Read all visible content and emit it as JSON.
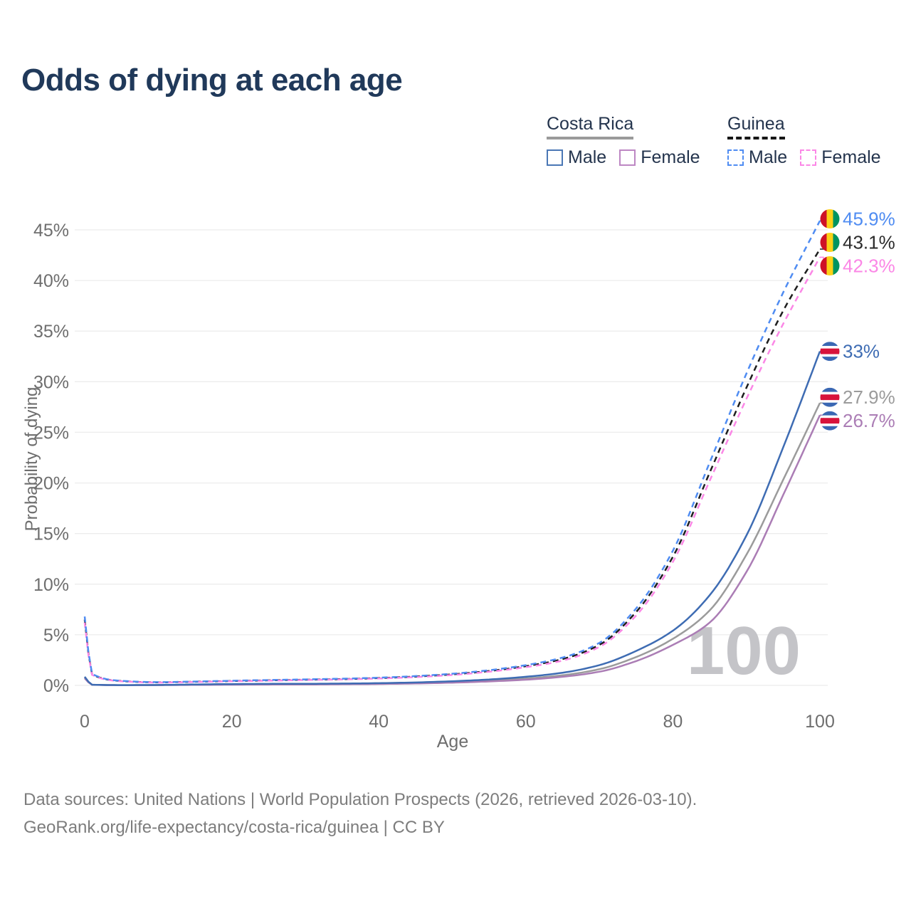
{
  "title": "Odds of dying at each age",
  "watermark": "100",
  "legend": {
    "costa_rica": {
      "label": "Costa Rica",
      "male": "Male",
      "female": "Female",
      "male_color": "#4a77b5",
      "female_color": "#bd87c3",
      "underline_color": "#9a9a9a",
      "style": "solid"
    },
    "guinea": {
      "label": "Guinea",
      "male": "Male",
      "female": "Female",
      "male_color": "#4f8cf2",
      "female_color": "#fb87e6",
      "underline_color": "#161616",
      "style": "dashed"
    }
  },
  "footer": {
    "line1": "Data sources: United Nations | World Population Prospects (2026, retrieved 2026-03-10).",
    "line2": "GeoRank.org/life-expectancy/costa-rica/guinea | CC BY"
  },
  "chart_data": {
    "type": "line",
    "title": "Odds of dying at each age",
    "xlabel": "Age",
    "ylabel": "Probability of dying",
    "xlim": [
      0,
      100
    ],
    "ylim": [
      0,
      46
    ],
    "y_unit": "%",
    "grid": "horizontal",
    "legend_position": "top-right",
    "x_ticks": [
      0,
      20,
      40,
      60,
      80,
      100
    ],
    "y_ticks": [
      0,
      5,
      10,
      15,
      20,
      25,
      30,
      35,
      40,
      45
    ],
    "x": [
      0,
      1,
      5,
      10,
      15,
      20,
      25,
      30,
      35,
      40,
      45,
      50,
      55,
      60,
      65,
      70,
      75,
      80,
      85,
      90,
      95,
      100
    ],
    "series": [
      {
        "name": "Costa Rica (both sexes)",
        "slug": "costa-rica-both",
        "color": "#9b9b9b",
        "label_color": "#9b9b9b",
        "dash": false,
        "flag": "costa-rica",
        "end_label": "27.9%",
        "values": [
          0.78,
          0.065,
          0.027,
          0.035,
          0.07,
          0.1,
          0.11,
          0.12,
          0.14,
          0.17,
          0.23,
          0.33,
          0.47,
          0.68,
          1.0,
          1.6,
          2.8,
          4.6,
          7.4,
          12.9,
          20.3,
          27.9
        ]
      },
      {
        "name": "Costa Rica Female",
        "slug": "costa-rica-female",
        "color": "#ab7db5",
        "label_color": "#ab7db5",
        "dash": false,
        "flag": "costa-rica",
        "end_label": "26.7%",
        "values": [
          0.7,
          0.06,
          0.024,
          0.03,
          0.05,
          0.07,
          0.08,
          0.09,
          0.11,
          0.14,
          0.19,
          0.27,
          0.39,
          0.56,
          0.85,
          1.35,
          2.4,
          4.0,
          6.2,
          11.2,
          18.8,
          26.7
        ]
      },
      {
        "name": "Costa Rica Male",
        "slug": "costa-rica-male",
        "color": "#3e6cb3",
        "label_color": "#3e6cb3",
        "dash": false,
        "flag": "costa-rica",
        "end_label": "33%",
        "values": [
          0.85,
          0.07,
          0.03,
          0.04,
          0.09,
          0.13,
          0.15,
          0.16,
          0.18,
          0.22,
          0.29,
          0.41,
          0.58,
          0.85,
          1.25,
          2.0,
          3.4,
          5.4,
          8.9,
          14.8,
          23.5,
          33.0
        ]
      },
      {
        "name": "Guinea (both sexes)",
        "slug": "guinea-both",
        "color": "#1e1e1e",
        "label_color": "#2b2b2b",
        "dash": true,
        "flag": "guinea",
        "end_label": "43.1%",
        "values": [
          6.5,
          1.1,
          0.43,
          0.3,
          0.36,
          0.43,
          0.5,
          0.56,
          0.62,
          0.72,
          0.87,
          1.09,
          1.42,
          1.9,
          2.6,
          4.0,
          7.25,
          12.7,
          21.0,
          29.4,
          37.0,
          43.1
        ]
      },
      {
        "name": "Guinea Female",
        "slug": "guinea-female",
        "color": "#fb87e6",
        "label_color": "#fb87e6",
        "dash": true,
        "flag": "guinea",
        "end_label": "42.3%",
        "values": [
          6.2,
          1.05,
          0.41,
          0.28,
          0.34,
          0.41,
          0.47,
          0.53,
          0.59,
          0.68,
          0.82,
          1.03,
          1.35,
          1.8,
          2.45,
          3.8,
          6.9,
          12.2,
          20.2,
          28.3,
          35.7,
          42.3
        ]
      },
      {
        "name": "Guinea Male",
        "slug": "guinea-male",
        "color": "#4f8cf2",
        "label_color": "#4f8cf2",
        "dash": true,
        "flag": "guinea",
        "end_label": "45.9%",
        "values": [
          6.8,
          1.15,
          0.45,
          0.32,
          0.38,
          0.46,
          0.53,
          0.59,
          0.66,
          0.76,
          0.92,
          1.15,
          1.5,
          2.0,
          2.75,
          4.2,
          7.6,
          13.3,
          22.0,
          30.8,
          38.8,
          45.9
        ]
      }
    ],
    "flag_colors": {
      "guinea": {
        "red": "#ce1126",
        "yellow": "#fcd116",
        "green": "#009460"
      },
      "costa_rica": {
        "blue": "#3a67b3",
        "white": "#ffffff",
        "red": "#d8133b"
      }
    }
  }
}
